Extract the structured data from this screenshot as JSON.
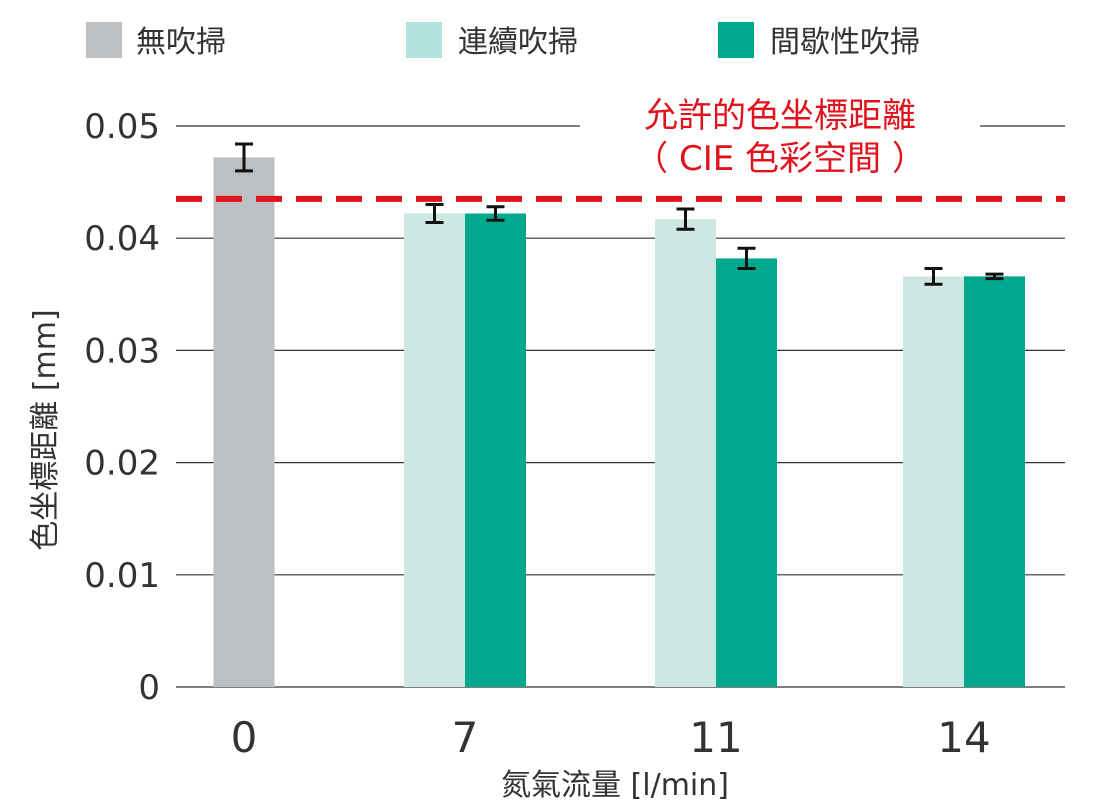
{
  "chart_data": {
    "type": "bar",
    "legend": [
      {
        "key": "none",
        "label": "無吹掃",
        "color": "#bcc0c2"
      },
      {
        "key": "continuous",
        "label": "連續吹掃",
        "color": "#b2e3dc"
      },
      {
        "key": "intermittent",
        "label": "間歇性吹掃",
        "color": "#00a88e"
      }
    ],
    "legend_placement": "top",
    "categories": [
      "0",
      "7",
      "11",
      "14"
    ],
    "series": [
      {
        "name": "無吹掃",
        "key": "none",
        "color": "#bcc0c2",
        "values": [
          0.0472,
          null,
          null,
          null
        ],
        "errors": [
          0.0012,
          null,
          null,
          null
        ]
      },
      {
        "name": "連續吹掃",
        "key": "continuous",
        "color": "#cde8e2",
        "values": [
          null,
          0.0422,
          0.0417,
          0.0366
        ],
        "errors": [
          null,
          0.0008,
          0.0009,
          0.0007
        ]
      },
      {
        "name": "間歇性吹掃",
        "key": "intermittent",
        "color": "#00a88e",
        "values": [
          null,
          0.0422,
          0.0382,
          0.0366
        ],
        "errors": [
          null,
          0.0006,
          0.0009,
          0.0002
        ]
      }
    ],
    "threshold": {
      "value": 0.0435,
      "label_line1": "允許的色坐標距離",
      "label_line2": "（ CIE 色彩空間 ）",
      "color": "#e0121c"
    },
    "xlabel": "氮氣流量 [l/min]",
    "ylabel": "色坐標距離 [mm]",
    "ylim": [
      0,
      0.05
    ],
    "yticks": [
      "0",
      "0.01",
      "0.02",
      "0.03",
      "0.04",
      "0.05"
    ],
    "grid": true
  }
}
